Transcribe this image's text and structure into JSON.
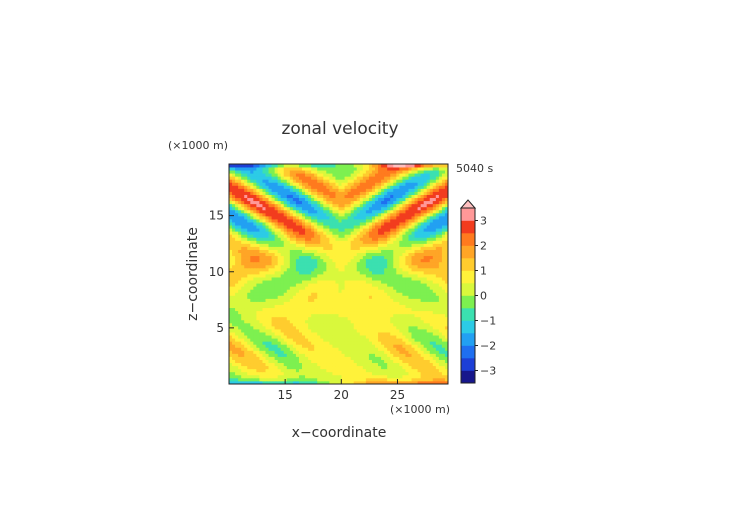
{
  "chart_data": {
    "type": "heatmap",
    "title": "zonal velocity",
    "xlabel": "x−coordinate",
    "ylabel": "z−coordinate",
    "x_unit": "(×1000 m)",
    "y_unit": "(×1000 m)",
    "time_label": "5040 s",
    "xlim": [
      10,
      29.5
    ],
    "ylim": [
      0,
      19.6
    ],
    "x_ticks": [
      15,
      20,
      25
    ],
    "y_ticks": [
      5,
      10,
      15
    ],
    "x_tick_labels": [
      "15",
      "20",
      "25"
    ],
    "y_tick_labels": [
      "5",
      "10",
      "15"
    ],
    "colorbar": {
      "levels": [
        -3.5,
        -3,
        -2.5,
        -2,
        -1.5,
        -1,
        -0.5,
        0,
        0.5,
        1,
        1.5,
        2,
        2.5,
        3,
        3.5
      ],
      "colors": [
        "#17178c",
        "#1d3fd6",
        "#1f6ff0",
        "#22a0f2",
        "#2ccbe6",
        "#3be0b0",
        "#7df050",
        "#d9f83c",
        "#fff23a",
        "#ffcc2e",
        "#ffa526",
        "#ff7a1e",
        "#f23c1e",
        "#ff9898",
        "#ffc0c0"
      ],
      "tick_values": [
        -3,
        -2,
        -1,
        0,
        1,
        2,
        3
      ],
      "tick_labels": [
        "−3",
        "−2",
        "−1",
        "0",
        "1",
        "2",
        "3"
      ],
      "extend": "max"
    }
  }
}
